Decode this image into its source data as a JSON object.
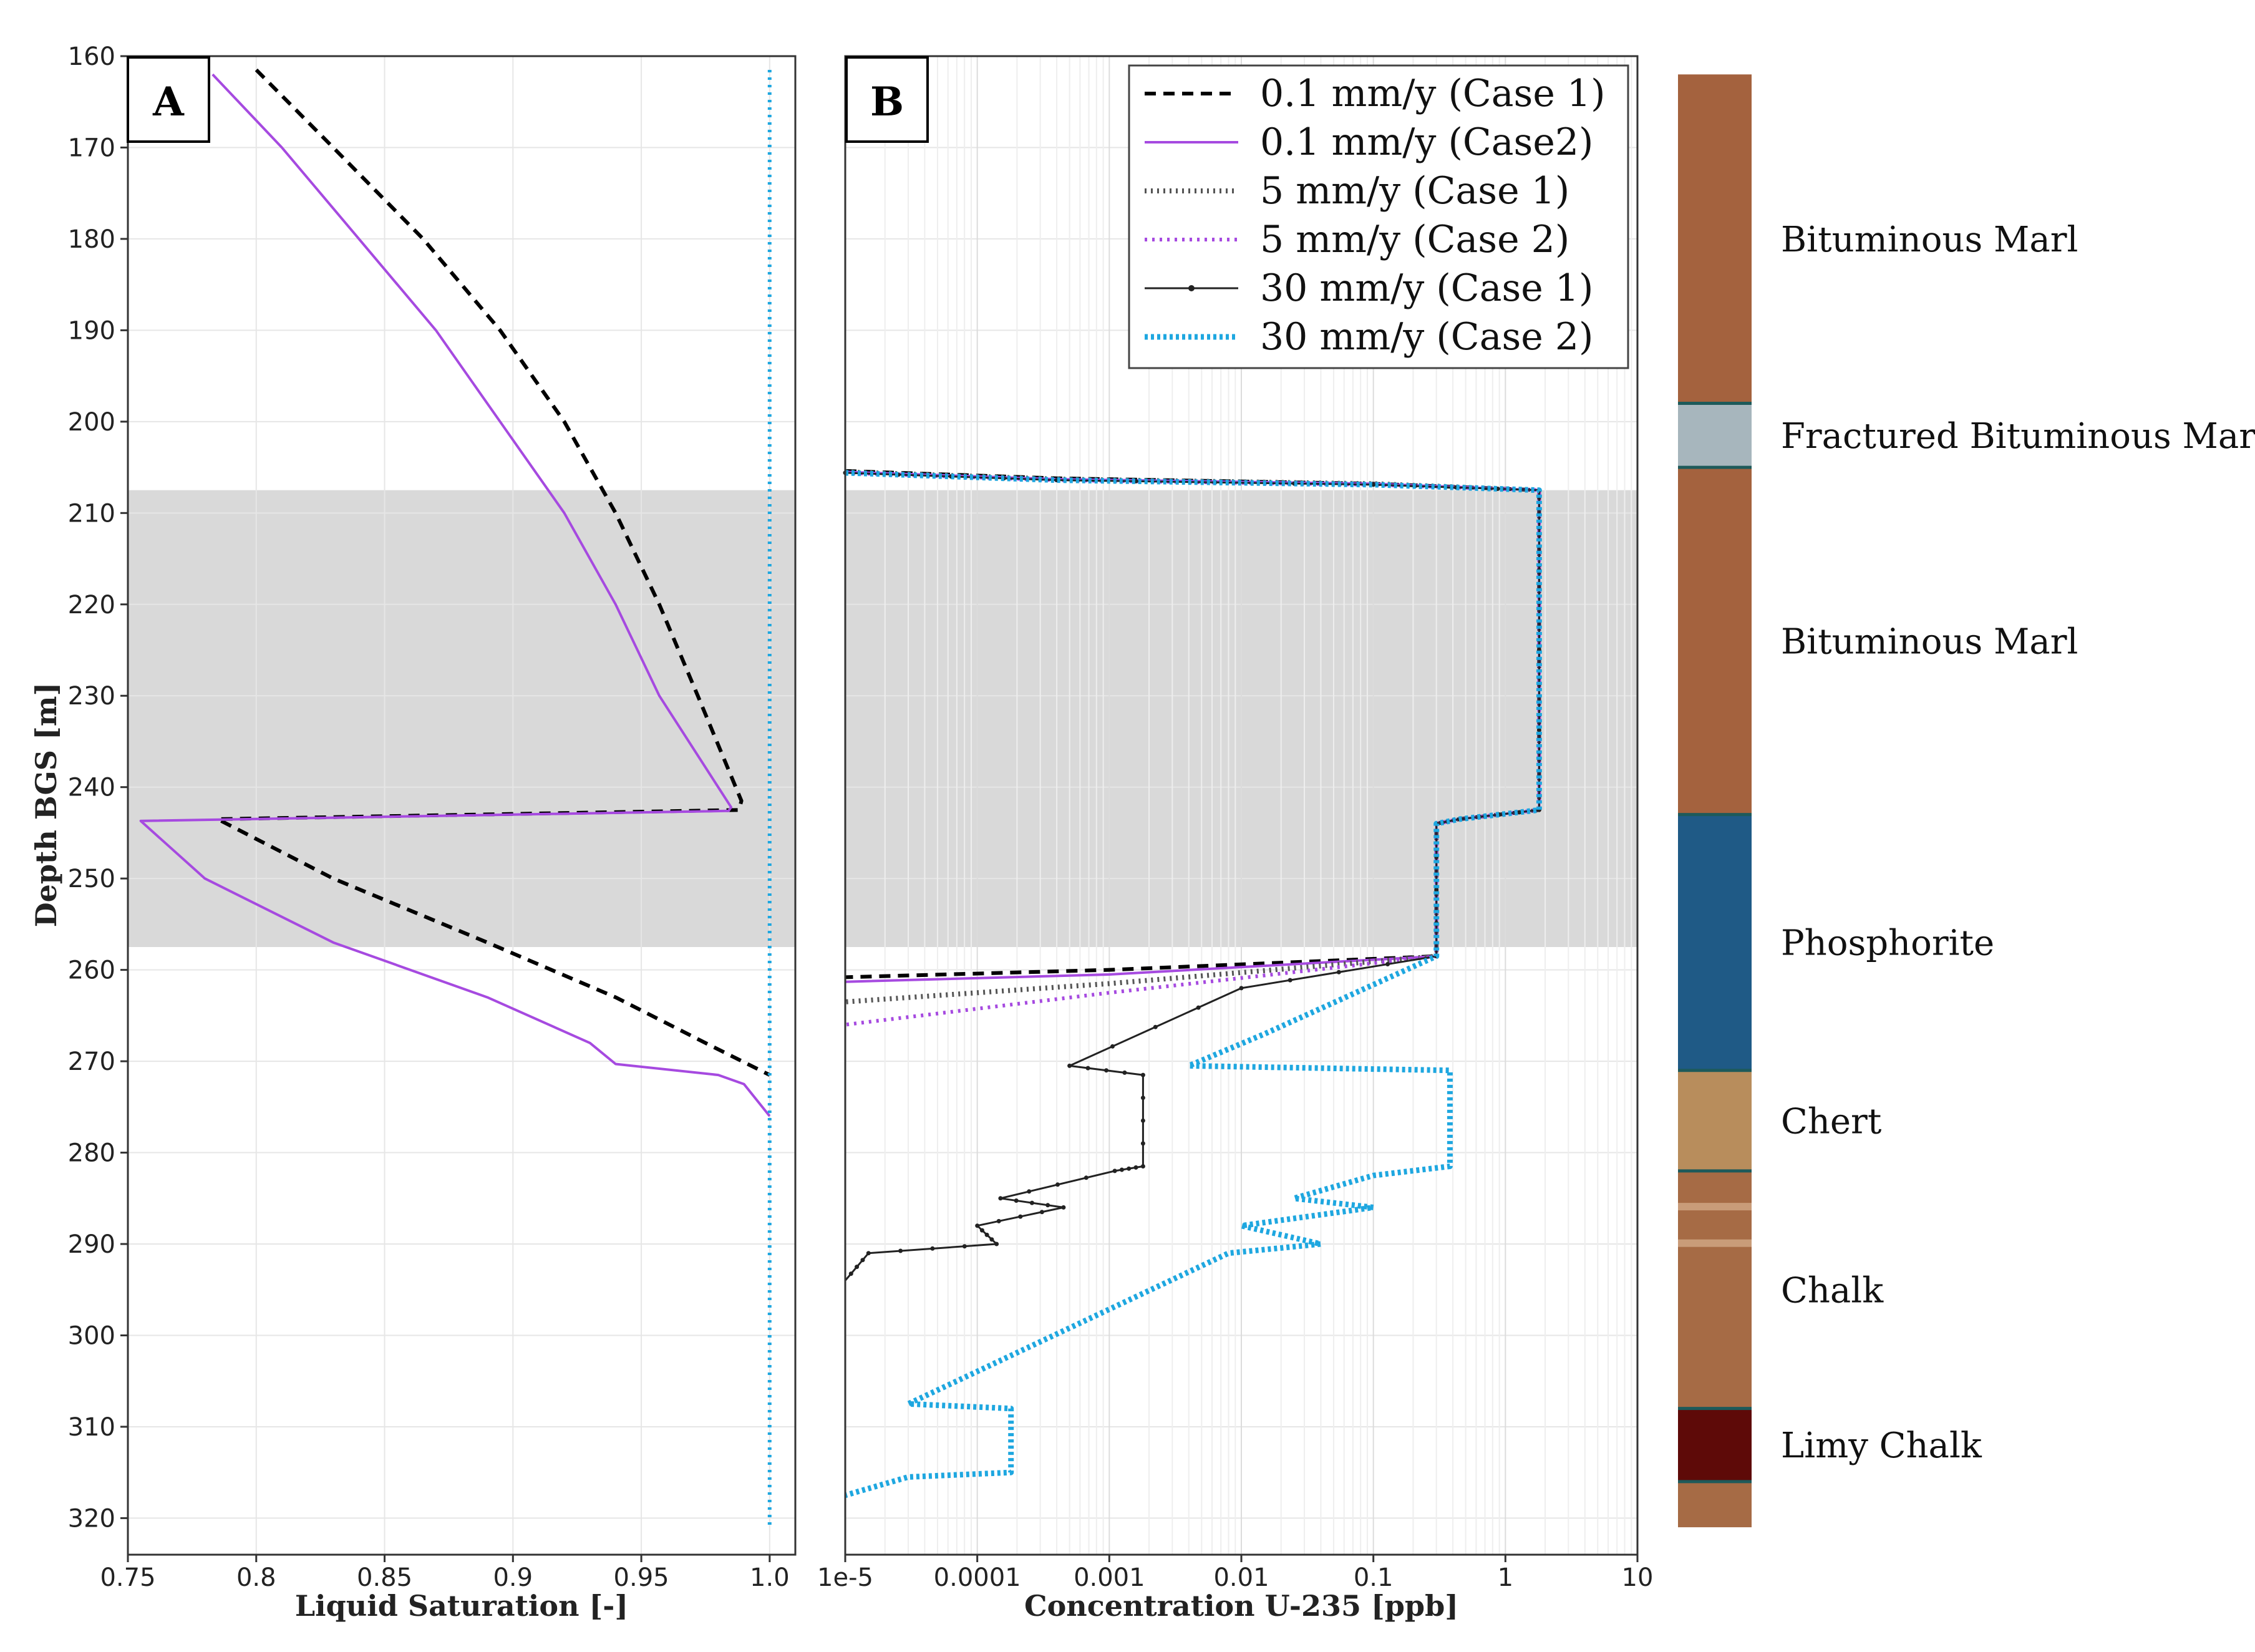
{
  "chart_data": [
    {
      "panel": "A",
      "type": "line",
      "xlabel": "Liquid Saturation [-]",
      "ylabel": "Depth BGS [m]",
      "xlim": [
        0.75,
        1.01
      ],
      "ylim": [
        160,
        324
      ],
      "xticks": [
        "0.75",
        "0.8",
        "0.85",
        "0.9",
        "0.95",
        "1.0"
      ],
      "yticks": [
        "160",
        "170",
        "180",
        "190",
        "200",
        "210",
        "220",
        "230",
        "240",
        "250",
        "260",
        "270",
        "280",
        "290",
        "300",
        "310",
        "320"
      ],
      "shaded_depth": [
        207.5,
        257.5
      ],
      "series": [
        {
          "name": "0.1 mm/y (Case 1)",
          "color": "#000000",
          "style": "dashed",
          "points": [
            [
              0.8,
              161.5
            ],
            [
              0.83,
              170
            ],
            [
              0.865,
              180
            ],
            [
              0.895,
              190
            ],
            [
              0.92,
              200
            ],
            [
              0.94,
              210
            ],
            [
              0.957,
              220
            ],
            [
              0.972,
              230
            ],
            [
              0.989,
              241.5
            ],
            [
              0.988,
              242.5
            ],
            [
              0.785,
              243.5
            ],
            [
              0.83,
              250
            ],
            [
              0.89,
              257
            ],
            [
              0.94,
              263
            ],
            [
              0.975,
              268
            ],
            [
              1.0,
              271.5
            ]
          ]
        },
        {
          "name": "0.1 mm/y (Case2)",
          "color": "#a64ae0",
          "style": "solid",
          "points": [
            [
              0.783,
              162
            ],
            [
              0.81,
              170
            ],
            [
              0.84,
              180
            ],
            [
              0.87,
              190
            ],
            [
              0.895,
              200
            ],
            [
              0.92,
              210
            ],
            [
              0.94,
              220
            ],
            [
              0.957,
              230
            ],
            [
              0.985,
              242.2
            ],
            [
              0.984,
              242.6
            ],
            [
              0.755,
              243.7
            ],
            [
              0.78,
              250
            ],
            [
              0.83,
              257
            ],
            [
              0.89,
              263
            ],
            [
              0.93,
              268
            ],
            [
              0.94,
              270.3
            ],
            [
              0.98,
              271.5
            ],
            [
              0.99,
              272.5
            ],
            [
              1.0,
              276
            ]
          ]
        },
        {
          "name": "30 mm/y (Case 2)",
          "color": "#1ea7e0",
          "style": "dotted",
          "points": [
            [
              1.0,
              161.5
            ],
            [
              1.0,
              321
            ]
          ]
        }
      ]
    },
    {
      "panel": "B",
      "type": "line",
      "xscale": "log",
      "xlabel": "Concentration U-235 [ppb]",
      "xlim": [
        1e-05,
        10
      ],
      "ylim": [
        160,
        324
      ],
      "xticks": [
        "1e-5",
        "0.0001",
        "0.001",
        "0.01",
        "0.1",
        "1",
        "10"
      ],
      "shaded_depth": [
        207.5,
        257.5
      ],
      "series": [
        {
          "name": "0.1 mm/y (Case 1)",
          "color": "#000000",
          "style": "dashed",
          "points": [
            [
              1e-05,
              205.4
            ],
            [
              0.0004,
              206.2
            ],
            [
              0.1,
              206.8
            ],
            [
              1.8,
              207.5
            ],
            [
              1.8,
              242.5
            ],
            [
              0.45,
              243.5
            ],
            [
              0.3,
              244
            ],
            [
              0.3,
              258.5
            ],
            [
              0.001,
              260
            ],
            [
              1e-05,
              260.8
            ]
          ]
        },
        {
          "name": "0.1 mm/y (Case2)",
          "color": "#a64ae0",
          "style": "solid",
          "points": [
            [
              1e-05,
              205.5
            ],
            [
              0.0004,
              206.3
            ],
            [
              0.1,
              206.8
            ],
            [
              1.8,
              207.5
            ],
            [
              1.8,
              242.5
            ],
            [
              0.45,
              243.5
            ],
            [
              0.3,
              244
            ],
            [
              0.3,
              258.5
            ],
            [
              0.001,
              260.5
            ],
            [
              1e-05,
              261.3
            ]
          ]
        },
        {
          "name": "5 mm/y (Case 1)",
          "color": "#555555",
          "style": "hatched",
          "points": [
            [
              1e-05,
              205.5
            ],
            [
              0.0004,
              206.3
            ],
            [
              0.1,
              206.8
            ],
            [
              1.8,
              207.5
            ],
            [
              1.8,
              242.5
            ],
            [
              0.45,
              243.5
            ],
            [
              0.3,
              244
            ],
            [
              0.3,
              258.5
            ],
            [
              0.001,
              261.5
            ],
            [
              1e-05,
              263.5
            ]
          ]
        },
        {
          "name": "5 mm/y (Case 2)",
          "color": "#a64ae0",
          "style": "dotted",
          "points": [
            [
              1e-05,
              205.6
            ],
            [
              0.0004,
              206.4
            ],
            [
              0.1,
              206.9
            ],
            [
              1.8,
              207.5
            ],
            [
              1.8,
              242.5
            ],
            [
              0.45,
              243.5
            ],
            [
              0.3,
              244
            ],
            [
              0.3,
              258.5
            ],
            [
              0.001,
              262.5
            ],
            [
              1e-05,
              266
            ]
          ]
        },
        {
          "name": "30 mm/y (Case 1)",
          "color": "#222222",
          "style": "solid-marker",
          "points": [
            [
              1e-05,
              205.6
            ],
            [
              0.0004,
              206.4
            ],
            [
              0.1,
              206.9
            ],
            [
              1.8,
              207.5
            ],
            [
              1.8,
              242.5
            ],
            [
              0.45,
              243.5
            ],
            [
              0.3,
              244
            ],
            [
              0.3,
              258.5
            ],
            [
              0.01,
              262
            ],
            [
              0.0005,
              270.5
            ],
            [
              0.0018,
              271.5
            ],
            [
              0.0018,
              281.5
            ],
            [
              0.0011,
              282
            ],
            [
              0.00015,
              285
            ],
            [
              0.00045,
              286
            ],
            [
              0.0001,
              288
            ],
            [
              0.00014,
              290
            ],
            [
              1.5e-05,
              291
            ],
            [
              1e-05,
              294
            ]
          ]
        },
        {
          "name": "30 mm/y (Case 2)",
          "color": "#1ea7e0",
          "style": "dotted-marker",
          "points": [
            [
              1e-05,
              205.6
            ],
            [
              0.0004,
              206.4
            ],
            [
              0.1,
              206.9
            ],
            [
              1.8,
              207.5
            ],
            [
              1.8,
              242.5
            ],
            [
              0.45,
              243.5
            ],
            [
              0.3,
              244
            ],
            [
              0.3,
              258.5
            ],
            [
              0.015,
              267
            ],
            [
              0.004,
              270.5
            ],
            [
              0.38,
              271
            ],
            [
              0.38,
              281.5
            ],
            [
              0.1,
              282.5
            ],
            [
              0.025,
              285
            ],
            [
              0.1,
              286
            ],
            [
              0.01,
              288
            ],
            [
              0.04,
              290
            ],
            [
              0.008,
              291
            ],
            [
              3e-05,
              307.5
            ],
            [
              0.00018,
              308
            ],
            [
              0.00018,
              315
            ],
            [
              3e-05,
              315.5
            ],
            [
              1e-05,
              317.5
            ]
          ]
        }
      ]
    }
  ],
  "panels": {
    "a_label": "A",
    "b_label": "B"
  },
  "legend": [
    {
      "label": "0.1 mm/y (Case 1)",
      "color": "#000000",
      "style": "dashed"
    },
    {
      "label": "0.1 mm/y (Case2)",
      "color": "#a64ae0",
      "style": "solid"
    },
    {
      "label": "5 mm/y (Case 1)",
      "color": "#555555",
      "style": "hatched"
    },
    {
      "label": "5 mm/y (Case 2)",
      "color": "#a64ae0",
      "style": "dotted"
    },
    {
      "label": "30 mm/y (Case 1)",
      "color": "#222222",
      "style": "solid-marker"
    },
    {
      "label": "30 mm/y (Case 2)",
      "color": "#1ea7e0",
      "style": "dotted-marker"
    }
  ],
  "strata": [
    {
      "label": "Bituminous Marl",
      "top": 162,
      "bottom": 198,
      "color": "#a4623e"
    },
    {
      "label": "Fractured Bituminous Marl",
      "top": 198,
      "bottom": 205,
      "color": "#a7b6bd"
    },
    {
      "label": "Bituminous Marl",
      "top": 205,
      "bottom": 243,
      "color": "#a4623e"
    },
    {
      "label": "Phosphorite",
      "top": 243,
      "bottom": 271,
      "color": "#1f5a86"
    },
    {
      "label": "Chert",
      "top": 271,
      "bottom": 282,
      "color": "#b88d5c"
    },
    {
      "label": "Chalk",
      "top": 282,
      "bottom": 308,
      "color": "#a66b45"
    },
    {
      "label": "Limy Chalk",
      "top": 308,
      "bottom": 316,
      "color": "#5e0a08"
    },
    {
      "label": "",
      "top": 316,
      "bottom": 321,
      "color": "#a66b45"
    }
  ]
}
